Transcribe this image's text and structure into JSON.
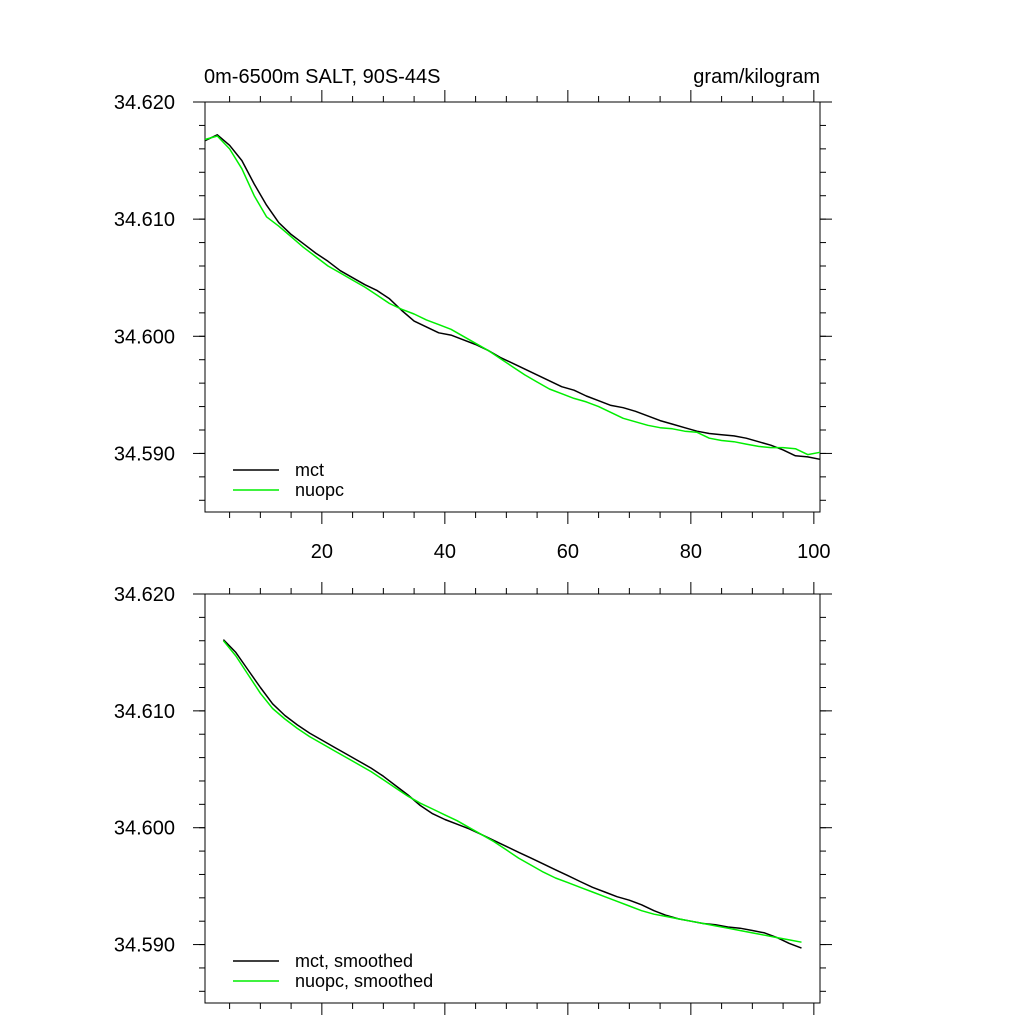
{
  "header": {
    "left_title": "0m-6500m SALT, 90S-44S",
    "right_title": "gram/kilogram"
  },
  "colors": {
    "mct": "#000000",
    "nuopc": "#00ee00",
    "axis": "#000000"
  },
  "chart_data": [
    {
      "type": "line",
      "panel": "top",
      "xlim": [
        1,
        101
      ],
      "ylim": [
        34.585,
        34.62
      ],
      "x_ticks": [
        20,
        40,
        60,
        80,
        100
      ],
      "x_tick_labels": [
        "20",
        "40",
        "60",
        "80",
        "100"
      ],
      "y_ticks": [
        34.59,
        34.6,
        34.61,
        34.62
      ],
      "y_tick_labels": [
        "34.590",
        "34.600",
        "34.610",
        "34.620"
      ],
      "legend": {
        "placement": "bottom-left",
        "entries": [
          "mct",
          "nuopc"
        ]
      },
      "series": [
        {
          "name": "mct",
          "x": [
            1,
            3,
            5,
            7,
            9,
            11,
            13,
            15,
            17,
            19,
            21,
            23,
            25,
            27,
            29,
            31,
            33,
            35,
            37,
            39,
            41,
            43,
            45,
            47,
            49,
            51,
            53,
            55,
            57,
            59,
            61,
            63,
            65,
            67,
            69,
            71,
            73,
            75,
            77,
            79,
            81,
            83,
            85,
            87,
            89,
            91,
            93,
            95,
            97,
            99,
            101
          ],
          "y": [
            34.6167,
            34.6172,
            34.6163,
            34.615,
            34.613,
            34.6112,
            34.6097,
            34.6087,
            34.6079,
            34.6071,
            34.6064,
            34.6056,
            34.605,
            34.6044,
            34.6039,
            34.6032,
            34.6022,
            34.6013,
            34.6008,
            34.6003,
            34.6001,
            34.5997,
            34.5993,
            34.5988,
            34.5982,
            34.5977,
            34.5972,
            34.5967,
            34.5962,
            34.5957,
            34.5954,
            34.5949,
            34.5945,
            34.5941,
            34.5939,
            34.5936,
            34.5932,
            34.5928,
            34.5925,
            34.5922,
            34.5919,
            34.5917,
            34.5916,
            34.5915,
            34.5913,
            34.591,
            34.5907,
            34.5903,
            34.5898,
            34.5897,
            34.5895
          ]
        },
        {
          "name": "nuopc",
          "x": [
            1,
            3,
            5,
            7,
            9,
            11,
            13,
            15,
            17,
            19,
            21,
            23,
            25,
            27,
            29,
            31,
            33,
            35,
            37,
            39,
            41,
            43,
            45,
            47,
            49,
            51,
            53,
            55,
            57,
            59,
            61,
            63,
            65,
            67,
            69,
            71,
            73,
            75,
            77,
            79,
            81,
            83,
            85,
            87,
            89,
            91,
            93,
            95,
            97,
            99,
            101
          ],
          "y": [
            34.6168,
            34.6171,
            34.616,
            34.6143,
            34.612,
            34.6102,
            34.6094,
            34.6085,
            34.6076,
            34.6068,
            34.606,
            34.6054,
            34.6048,
            34.6042,
            34.6035,
            34.6028,
            34.6023,
            34.6019,
            34.6014,
            34.601,
            34.6006,
            34.6,
            34.5994,
            34.5988,
            34.5981,
            34.5974,
            34.5967,
            34.5961,
            34.5955,
            34.5951,
            34.5947,
            34.5944,
            34.594,
            34.5935,
            34.593,
            34.5927,
            34.5924,
            34.5922,
            34.5921,
            34.5919,
            34.5918,
            34.5913,
            34.5911,
            34.591,
            34.5908,
            34.5906,
            34.5905,
            34.5905,
            34.5904,
            34.5899,
            34.5901
          ]
        }
      ]
    },
    {
      "type": "line",
      "panel": "bottom",
      "xlim": [
        1,
        101
      ],
      "ylim": [
        34.585,
        34.62
      ],
      "x_ticks": [
        20,
        40,
        60,
        80,
        100
      ],
      "y_ticks": [
        34.59,
        34.6,
        34.61,
        34.62
      ],
      "y_tick_labels": [
        "34.590",
        "34.600",
        "34.610",
        "34.620"
      ],
      "legend": {
        "placement": "bottom-left",
        "entries": [
          "mct, smoothed",
          "nuopc, smoothed"
        ]
      },
      "series": [
        {
          "name": "mct, smoothed",
          "x": [
            4,
            6,
            8,
            10,
            12,
            14,
            16,
            18,
            20,
            22,
            24,
            26,
            28,
            30,
            32,
            34,
            36,
            38,
            40,
            42,
            44,
            46,
            48,
            50,
            52,
            54,
            56,
            58,
            60,
            62,
            64,
            66,
            68,
            70,
            72,
            74,
            76,
            78,
            80,
            82,
            84,
            86,
            88,
            90,
            92,
            94,
            96,
            98
          ],
          "y": [
            34.6161,
            34.615,
            34.6135,
            34.612,
            34.6106,
            34.6096,
            34.6088,
            34.6081,
            34.6075,
            34.6069,
            34.6063,
            34.6057,
            34.6051,
            34.6044,
            34.6036,
            34.6028,
            34.6019,
            34.6012,
            34.6007,
            34.6003,
            34.5999,
            34.5994,
            34.5989,
            34.5984,
            34.5979,
            34.5974,
            34.5969,
            34.5964,
            34.5959,
            34.5954,
            34.5949,
            34.5945,
            34.5941,
            34.5938,
            34.5934,
            34.5929,
            34.5925,
            34.5922,
            34.592,
            34.5918,
            34.5917,
            34.5915,
            34.5914,
            34.5912,
            34.591,
            34.5906,
            34.5901,
            34.5897
          ]
        },
        {
          "name": "nuopc, smoothed",
          "x": [
            4,
            6,
            8,
            10,
            12,
            14,
            16,
            18,
            20,
            22,
            24,
            26,
            28,
            30,
            32,
            34,
            36,
            38,
            40,
            42,
            44,
            46,
            48,
            50,
            52,
            54,
            56,
            58,
            60,
            62,
            64,
            66,
            68,
            70,
            72,
            74,
            76,
            78,
            80,
            82,
            84,
            86,
            88,
            90,
            92,
            94,
            96,
            98
          ],
          "y": [
            34.616,
            34.6147,
            34.6131,
            34.6115,
            34.6102,
            34.6093,
            34.6085,
            34.6078,
            34.6072,
            34.6066,
            34.606,
            34.6054,
            34.6048,
            34.6041,
            34.6034,
            34.6027,
            34.6021,
            34.6016,
            34.6011,
            34.6006,
            34.6,
            34.5994,
            34.5988,
            34.5981,
            34.5974,
            34.5968,
            34.5962,
            34.5957,
            34.5953,
            34.5949,
            34.5945,
            34.5941,
            34.5937,
            34.5933,
            34.5929,
            34.5926,
            34.5924,
            34.5922,
            34.592,
            34.5918,
            34.5916,
            34.5914,
            34.5912,
            34.591,
            34.5908,
            34.5906,
            34.5904,
            34.5902
          ]
        }
      ]
    }
  ]
}
